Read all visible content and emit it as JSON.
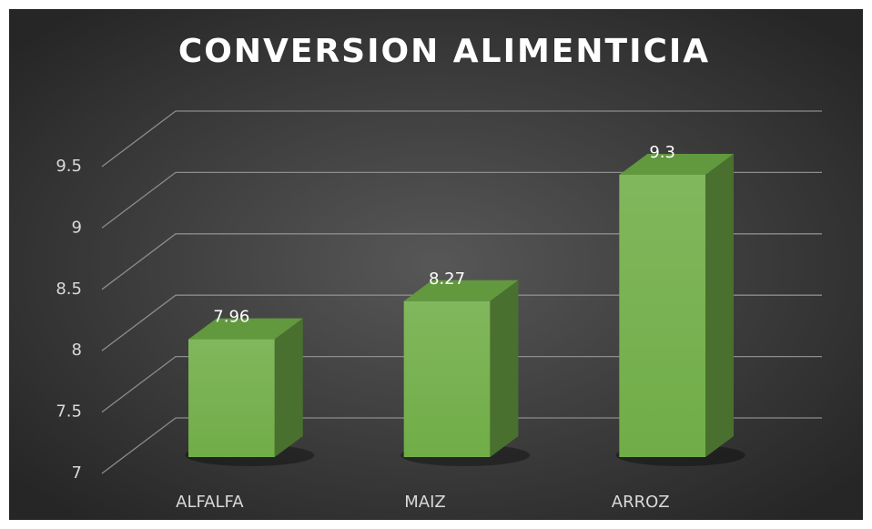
{
  "chart_data": {
    "type": "bar",
    "title": "CONVERSION ALIMENTICIA",
    "categories": [
      "ALFALFA",
      "MAIZ",
      "ARROZ"
    ],
    "values": [
      7.96,
      8.27,
      9.3
    ],
    "color": "#70ad47",
    "ylim": [
      7,
      9.5
    ],
    "yticks": [
      7,
      7.5,
      8,
      8.5,
      9,
      9.5
    ],
    "grid": true
  }
}
